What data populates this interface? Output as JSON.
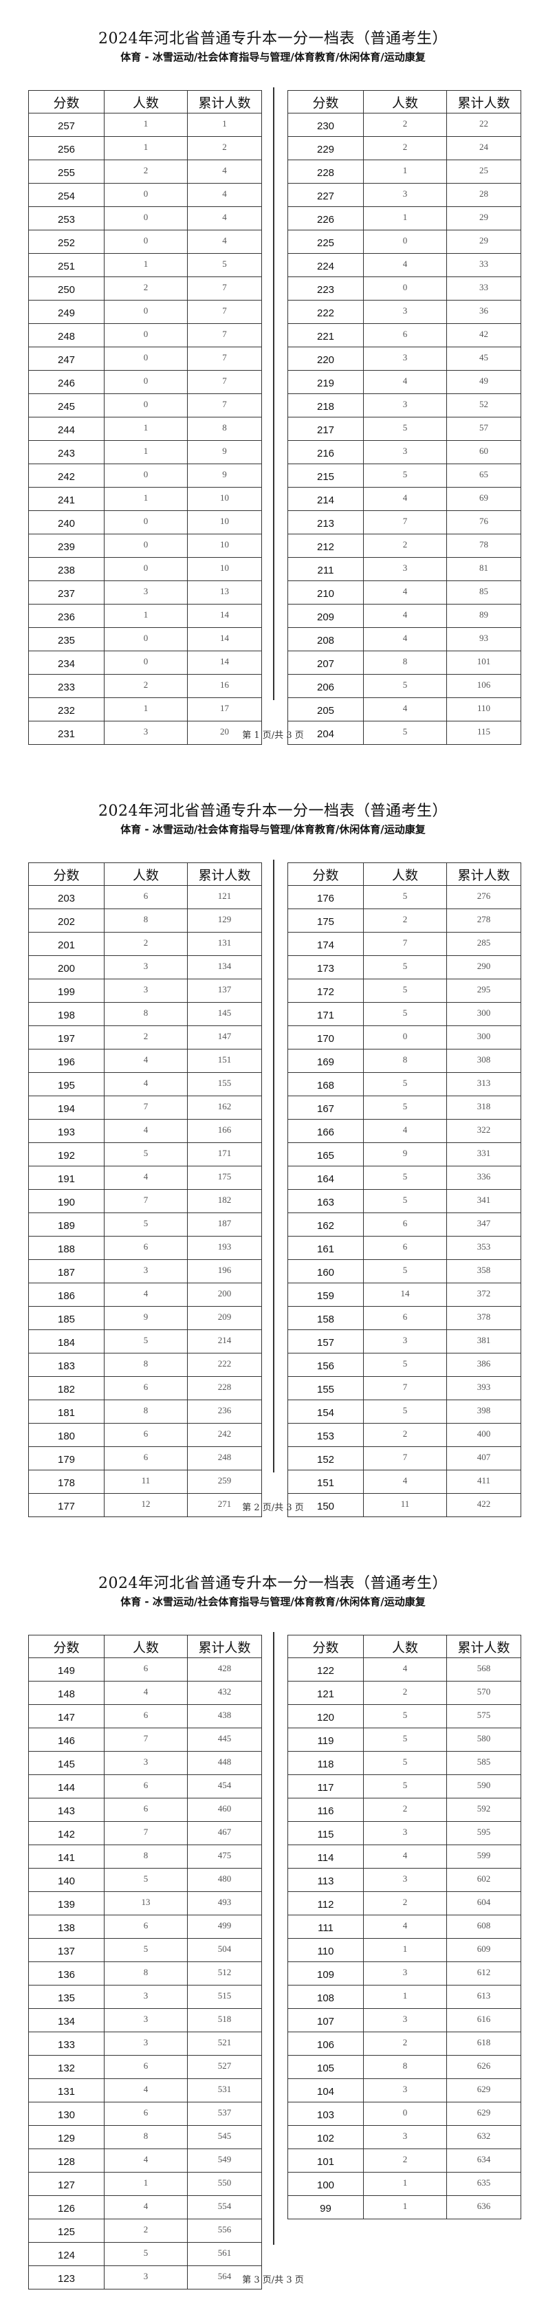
{
  "document": {
    "title": "2024年河北省普通专升本一分一档表（普通考生）",
    "subtitle": "体育 - 冰雪运动/社会体育指导与管理/体育教育/休闲体育/运动康复",
    "headers": [
      "分数",
      "人数",
      "累计人数"
    ]
  },
  "pages": [
    {
      "footer": "第 1 页/共 3 页",
      "left": [
        [
          "257",
          "1",
          "1"
        ],
        [
          "256",
          "1",
          "2"
        ],
        [
          "255",
          "2",
          "4"
        ],
        [
          "254",
          "0",
          "4"
        ],
        [
          "253",
          "0",
          "4"
        ],
        [
          "252",
          "0",
          "4"
        ],
        [
          "251",
          "1",
          "5"
        ],
        [
          "250",
          "2",
          "7"
        ],
        [
          "249",
          "0",
          "7"
        ],
        [
          "248",
          "0",
          "7"
        ],
        [
          "247",
          "0",
          "7"
        ],
        [
          "246",
          "0",
          "7"
        ],
        [
          "245",
          "0",
          "7"
        ],
        [
          "244",
          "1",
          "8"
        ],
        [
          "243",
          "1",
          "9"
        ],
        [
          "242",
          "0",
          "9"
        ],
        [
          "241",
          "1",
          "10"
        ],
        [
          "240",
          "0",
          "10"
        ],
        [
          "239",
          "0",
          "10"
        ],
        [
          "238",
          "0",
          "10"
        ],
        [
          "237",
          "3",
          "13"
        ],
        [
          "236",
          "1",
          "14"
        ],
        [
          "235",
          "0",
          "14"
        ],
        [
          "234",
          "0",
          "14"
        ],
        [
          "233",
          "2",
          "16"
        ],
        [
          "232",
          "1",
          "17"
        ],
        [
          "231",
          "3",
          "20"
        ]
      ],
      "right": [
        [
          "230",
          "2",
          "22"
        ],
        [
          "229",
          "2",
          "24"
        ],
        [
          "228",
          "1",
          "25"
        ],
        [
          "227",
          "3",
          "28"
        ],
        [
          "226",
          "1",
          "29"
        ],
        [
          "225",
          "0",
          "29"
        ],
        [
          "224",
          "4",
          "33"
        ],
        [
          "223",
          "0",
          "33"
        ],
        [
          "222",
          "3",
          "36"
        ],
        [
          "221",
          "6",
          "42"
        ],
        [
          "220",
          "3",
          "45"
        ],
        [
          "219",
          "4",
          "49"
        ],
        [
          "218",
          "3",
          "52"
        ],
        [
          "217",
          "5",
          "57"
        ],
        [
          "216",
          "3",
          "60"
        ],
        [
          "215",
          "5",
          "65"
        ],
        [
          "214",
          "4",
          "69"
        ],
        [
          "213",
          "7",
          "76"
        ],
        [
          "212",
          "2",
          "78"
        ],
        [
          "211",
          "3",
          "81"
        ],
        [
          "210",
          "4",
          "85"
        ],
        [
          "209",
          "4",
          "89"
        ],
        [
          "208",
          "4",
          "93"
        ],
        [
          "207",
          "8",
          "101"
        ],
        [
          "206",
          "5",
          "106"
        ],
        [
          "205",
          "4",
          "110"
        ],
        [
          "204",
          "5",
          "115"
        ]
      ]
    },
    {
      "footer": "第 2 页/共 3 页",
      "left": [
        [
          "203",
          "6",
          "121"
        ],
        [
          "202",
          "8",
          "129"
        ],
        [
          "201",
          "2",
          "131"
        ],
        [
          "200",
          "3",
          "134"
        ],
        [
          "199",
          "3",
          "137"
        ],
        [
          "198",
          "8",
          "145"
        ],
        [
          "197",
          "2",
          "147"
        ],
        [
          "196",
          "4",
          "151"
        ],
        [
          "195",
          "4",
          "155"
        ],
        [
          "194",
          "7",
          "162"
        ],
        [
          "193",
          "4",
          "166"
        ],
        [
          "192",
          "5",
          "171"
        ],
        [
          "191",
          "4",
          "175"
        ],
        [
          "190",
          "7",
          "182"
        ],
        [
          "189",
          "5",
          "187"
        ],
        [
          "188",
          "6",
          "193"
        ],
        [
          "187",
          "3",
          "196"
        ],
        [
          "186",
          "4",
          "200"
        ],
        [
          "185",
          "9",
          "209"
        ],
        [
          "184",
          "5",
          "214"
        ],
        [
          "183",
          "8",
          "222"
        ],
        [
          "182",
          "6",
          "228"
        ],
        [
          "181",
          "8",
          "236"
        ],
        [
          "180",
          "6",
          "242"
        ],
        [
          "179",
          "6",
          "248"
        ],
        [
          "178",
          "11",
          "259"
        ],
        [
          "177",
          "12",
          "271"
        ]
      ],
      "right": [
        [
          "176",
          "5",
          "276"
        ],
        [
          "175",
          "2",
          "278"
        ],
        [
          "174",
          "7",
          "285"
        ],
        [
          "173",
          "5",
          "290"
        ],
        [
          "172",
          "5",
          "295"
        ],
        [
          "171",
          "5",
          "300"
        ],
        [
          "170",
          "0",
          "300"
        ],
        [
          "169",
          "8",
          "308"
        ],
        [
          "168",
          "5",
          "313"
        ],
        [
          "167",
          "5",
          "318"
        ],
        [
          "166",
          "4",
          "322"
        ],
        [
          "165",
          "9",
          "331"
        ],
        [
          "164",
          "5",
          "336"
        ],
        [
          "163",
          "5",
          "341"
        ],
        [
          "162",
          "6",
          "347"
        ],
        [
          "161",
          "6",
          "353"
        ],
        [
          "160",
          "5",
          "358"
        ],
        [
          "159",
          "14",
          "372"
        ],
        [
          "158",
          "6",
          "378"
        ],
        [
          "157",
          "3",
          "381"
        ],
        [
          "156",
          "5",
          "386"
        ],
        [
          "155",
          "7",
          "393"
        ],
        [
          "154",
          "5",
          "398"
        ],
        [
          "153",
          "2",
          "400"
        ],
        [
          "152",
          "7",
          "407"
        ],
        [
          "151",
          "4",
          "411"
        ],
        [
          "150",
          "11",
          "422"
        ]
      ]
    },
    {
      "footer": "第 3 页/共 3 页",
      "left": [
        [
          "149",
          "6",
          "428"
        ],
        [
          "148",
          "4",
          "432"
        ],
        [
          "147",
          "6",
          "438"
        ],
        [
          "146",
          "7",
          "445"
        ],
        [
          "145",
          "3",
          "448"
        ],
        [
          "144",
          "6",
          "454"
        ],
        [
          "143",
          "6",
          "460"
        ],
        [
          "142",
          "7",
          "467"
        ],
        [
          "141",
          "8",
          "475"
        ],
        [
          "140",
          "5",
          "480"
        ],
        [
          "139",
          "13",
          "493"
        ],
        [
          "138",
          "6",
          "499"
        ],
        [
          "137",
          "5",
          "504"
        ],
        [
          "136",
          "8",
          "512"
        ],
        [
          "135",
          "3",
          "515"
        ],
        [
          "134",
          "3",
          "518"
        ],
        [
          "133",
          "3",
          "521"
        ],
        [
          "132",
          "6",
          "527"
        ],
        [
          "131",
          "4",
          "531"
        ],
        [
          "130",
          "6",
          "537"
        ],
        [
          "129",
          "8",
          "545"
        ],
        [
          "128",
          "4",
          "549"
        ],
        [
          "127",
          "1",
          "550"
        ],
        [
          "126",
          "4",
          "554"
        ],
        [
          "125",
          "2",
          "556"
        ],
        [
          "124",
          "5",
          "561"
        ],
        [
          "123",
          "3",
          "564"
        ]
      ],
      "right": [
        [
          "122",
          "4",
          "568"
        ],
        [
          "121",
          "2",
          "570"
        ],
        [
          "120",
          "5",
          "575"
        ],
        [
          "119",
          "5",
          "580"
        ],
        [
          "118",
          "5",
          "585"
        ],
        [
          "117",
          "5",
          "590"
        ],
        [
          "116",
          "2",
          "592"
        ],
        [
          "115",
          "3",
          "595"
        ],
        [
          "114",
          "4",
          "599"
        ],
        [
          "113",
          "3",
          "602"
        ],
        [
          "112",
          "2",
          "604"
        ],
        [
          "111",
          "4",
          "608"
        ],
        [
          "110",
          "1",
          "609"
        ],
        [
          "109",
          "3",
          "612"
        ],
        [
          "108",
          "1",
          "613"
        ],
        [
          "107",
          "3",
          "616"
        ],
        [
          "106",
          "2",
          "618"
        ],
        [
          "105",
          "8",
          "626"
        ],
        [
          "104",
          "3",
          "629"
        ],
        [
          "103",
          "0",
          "629"
        ],
        [
          "102",
          "3",
          "632"
        ],
        [
          "101",
          "2",
          "634"
        ],
        [
          "100",
          "1",
          "635"
        ],
        [
          "99",
          "1",
          "636"
        ]
      ]
    }
  ]
}
